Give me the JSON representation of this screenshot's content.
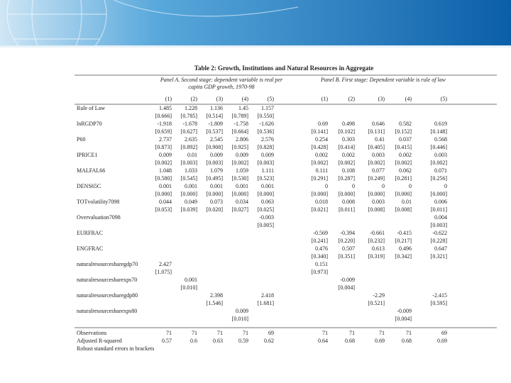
{
  "table": {
    "title": "Table 2: Growth, Institutions and Natural Resources in Aggregate",
    "panel_a": "Panel A. Second stage: dependent variable is real per capita GDP growth, 1970-98",
    "panel_b": "Panel B. First stage: Dependent variable is rule of law",
    "columns": [
      "(1)",
      "(2)",
      "(3)",
      "(4)",
      "(5)",
      "(1)",
      "(2)",
      "(3)",
      "(4)",
      "(5)"
    ],
    "rows": [
      {
        "label": "Rule of Law",
        "values": [
          "1.485",
          "1.228",
          "1.136",
          "1.45",
          "1.157",
          null,
          null,
          null,
          null,
          null
        ]
      },
      {
        "values": [
          "[0.666]",
          "[0.785]",
          "[0.514]",
          "[0.789]",
          "[0.550]",
          null,
          null,
          null,
          null,
          null
        ]
      },
      {
        "label": "lnRGDP70",
        "values": [
          "-1.918",
          "-1.678",
          "-1.809",
          "-1.758",
          "-1.626",
          "0.69",
          "0.498",
          "0.646",
          "0.582",
          "0.619"
        ]
      },
      {
        "values": [
          "[0.659]",
          "[0.627]",
          "[0.537]",
          "[0.664]",
          "[0.536]",
          "[0.141]",
          "[0.102]",
          "[0.131]",
          "[0.152]",
          "[0.148]"
        ]
      },
      {
        "label": "P60",
        "values": [
          "2.737",
          "2.635",
          "2.545",
          "2.806",
          "2.576",
          "0.254",
          "0.303",
          "0.41",
          "0.037",
          "0.568"
        ]
      },
      {
        "values": [
          "[0.873]",
          "[0.892]",
          "[0.908]",
          "[0.925]",
          "[0.828]",
          "[0.428]",
          "[0.414]",
          "[0.405]",
          "[0.415]",
          "[0.446]"
        ]
      },
      {
        "label": "IPRICE1",
        "values": [
          "0.009",
          "0.01",
          "0.009",
          "0.009",
          "0.009",
          "0.002",
          "0.002",
          "0.003",
          "0.002",
          "0.003"
        ]
      },
      {
        "values": [
          "[0.002]",
          "[0.003]",
          "[0.003]",
          "[0.002]",
          "[0.003]",
          "[0.002]",
          "[0.002]",
          "[0.002]",
          "[0.002]",
          "[0.002]"
        ]
      },
      {
        "label": "MALFAL66",
        "values": [
          "1.048",
          "1.033",
          "1.079",
          "1.059",
          "1.111",
          "0.111",
          "0.108",
          "0.077",
          "0.062",
          "0.071"
        ]
      },
      {
        "values": [
          "[0.580]",
          "[0.545]",
          "[0.495]",
          "[0.530]",
          "[0.523]",
          "[0.291]",
          "[0.287]",
          "[0.249]",
          "[0.281]",
          "[0.256]"
        ]
      },
      {
        "label": "DENS65C",
        "values": [
          "0.001",
          "0.001",
          "0.001",
          "0.001",
          "0.001",
          "0",
          "0",
          "0",
          "0",
          "0"
        ]
      },
      {
        "values": [
          "[0.000]",
          "[0.000]",
          "[0.000]",
          "[0.000]",
          "[0.000]",
          "[0.000]",
          "[0.000]",
          "[0.000]",
          "[0.000]",
          "[0.000]"
        ]
      },
      {
        "label": "TOTvolatility7098",
        "values": [
          "0.044",
          "0.049",
          "0.073",
          "0.034",
          "0.063",
          "0.018",
          "0.008",
          "0.003",
          "0.01",
          "0.006"
        ]
      },
      {
        "values": [
          "[0.053]",
          "[0.039]",
          "[0.020]",
          "[0.027]",
          "[0.025]",
          "[0.021]",
          "[0.011]",
          "[0.008]",
          "[0.008]",
          "[0.011]"
        ]
      },
      {
        "label": "Overvaluation7098",
        "values": [
          null,
          null,
          null,
          null,
          "-0.003",
          null,
          null,
          null,
          null,
          "0.004"
        ]
      },
      {
        "values": [
          null,
          null,
          null,
          null,
          "[0.005]",
          null,
          null,
          null,
          null,
          "[0.003]"
        ]
      },
      {
        "label": "EURFRAC",
        "values": [
          null,
          null,
          null,
          null,
          null,
          "-0.569",
          "-0.394",
          "-0.661",
          "-0.415",
          "-0.622"
        ]
      },
      {
        "values": [
          null,
          null,
          null,
          null,
          null,
          "[0.241]",
          "[0.220]",
          "[0.232]",
          "[0.217]",
          "[0.228]"
        ]
      },
      {
        "label": "ENGFRAC",
        "values": [
          null,
          null,
          null,
          null,
          null,
          "0.476",
          "0.507",
          "0.613",
          "0.496",
          "0.647"
        ]
      },
      {
        "values": [
          null,
          null,
          null,
          null,
          null,
          "[0.340]",
          "[0.351]",
          "[0.319]",
          "[0.342]",
          "[0.321]"
        ]
      },
      {
        "label": "naturalresourcesharegdp70",
        "values": [
          "2.427",
          null,
          null,
          null,
          null,
          "0.151",
          null,
          null,
          null,
          null
        ]
      },
      {
        "values": [
          "[1.075]",
          null,
          null,
          null,
          null,
          "[0.973]",
          null,
          null,
          null,
          null
        ]
      },
      {
        "label": "naturalresourcesharexps70",
        "values": [
          null,
          "0.001",
          null,
          null,
          null,
          null,
          "-0.009",
          null,
          null,
          null
        ]
      },
      {
        "values": [
          null,
          "[0.010]",
          null,
          null,
          null,
          null,
          "[0.004]",
          null,
          null,
          null
        ]
      },
      {
        "label": "naturalresourcesharegdp80",
        "values": [
          null,
          null,
          "2.398",
          null,
          "2.418",
          null,
          null,
          "-2.29",
          null,
          "-2.415"
        ]
      },
      {
        "values": [
          null,
          null,
          "[1.546]",
          null,
          "[1.681]",
          null,
          null,
          "[0.521]",
          null,
          "[0.595]"
        ]
      },
      {
        "label": "naturalresourcesharexps80",
        "values": [
          null,
          null,
          null,
          "0.009",
          null,
          null,
          null,
          null,
          "-0.009",
          null
        ]
      },
      {
        "values": [
          null,
          null,
          null,
          "[0.010]",
          null,
          null,
          null,
          null,
          "[0.004]",
          null
        ]
      },
      {
        "label": "Observations",
        "values": [
          "71",
          "71",
          "71",
          "71",
          "69",
          "71",
          "71",
          "71",
          "71",
          "69"
        ]
      },
      {
        "label": "Adjusted R-squared",
        "values": [
          "0.57",
          "0.6",
          "0.63",
          "0.59",
          "0.62",
          "0.64",
          "0.68",
          "0.69",
          "0.68",
          "0.69"
        ]
      }
    ],
    "note": "Robust standard errors in brackets"
  }
}
